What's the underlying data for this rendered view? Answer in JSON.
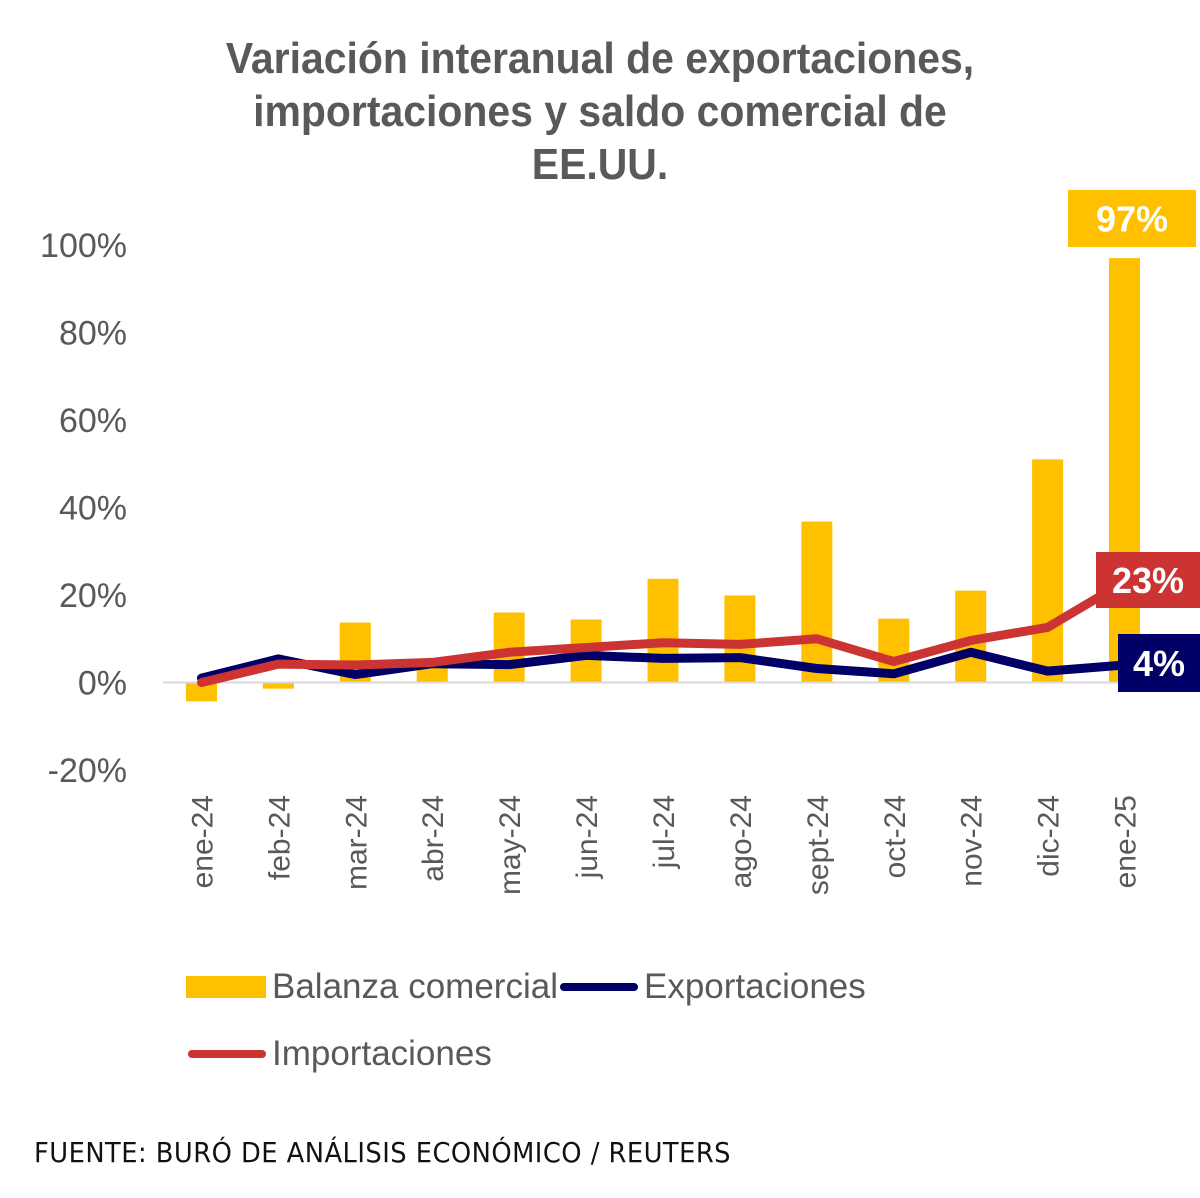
{
  "chart_data": {
    "type": "bar",
    "title": "Variación interanual de exportaciones, importaciones y saldo comercial de EE.UU.",
    "title_lines": [
      "Variación interanual de exportaciones,",
      "importaciones y saldo comercial de",
      "EE.UU."
    ],
    "xlabel": "",
    "ylabel": "",
    "ylim": [
      -20,
      100
    ],
    "yticks": [
      -20,
      0,
      20,
      40,
      60,
      80,
      100
    ],
    "ytick_labels": [
      "-20%",
      "0%",
      "20%",
      "40%",
      "60%",
      "80%",
      "100%"
    ],
    "grid": false,
    "categories": [
      "ene-24",
      "feb-24",
      "mar-24",
      "abr-24",
      "may-24",
      "jun-24",
      "jul-24",
      "ago-24",
      "sept-24",
      "oct-24",
      "nov-24",
      "dic-24",
      "ene-25"
    ],
    "series": [
      {
        "name": "Balanza comercial",
        "type": "bar",
        "color": "#FFC000",
        "values": [
          -4.3,
          -1.4,
          13.7,
          4.5,
          16.0,
          14.4,
          23.7,
          19.9,
          36.8,
          14.6,
          21.0,
          51.0,
          97.0
        ]
      },
      {
        "name": "Exportaciones",
        "type": "line",
        "color": "#000066",
        "values": [
          1.0,
          5.4,
          1.8,
          4.3,
          4.1,
          6.2,
          5.5,
          5.7,
          3.2,
          2.0,
          6.9,
          2.6,
          4.0
        ]
      },
      {
        "name": "Importaciones",
        "type": "line",
        "color": "#CC3333",
        "values": [
          0.0,
          4.2,
          4.0,
          4.6,
          6.9,
          8.0,
          9.1,
          8.7,
          10.0,
          4.8,
          9.6,
          12.6,
          23.0
        ]
      }
    ],
    "annotations": [
      {
        "series": "Balanza comercial",
        "category": "ene-25",
        "text": "97%",
        "color": "#FFC000"
      },
      {
        "series": "Importaciones",
        "category": "ene-25",
        "text": "23%",
        "color": "#CC3333"
      },
      {
        "series": "Exportaciones",
        "category": "ene-25",
        "text": "4%",
        "color": "#000066"
      }
    ],
    "legend": {
      "placement": "bottom",
      "entries": [
        "Balanza comercial",
        "Exportaciones",
        "Importaciones"
      ]
    }
  },
  "source": "FUENTE: BURÓ DE ANÁLISIS ECONÓMICO / REUTERS"
}
